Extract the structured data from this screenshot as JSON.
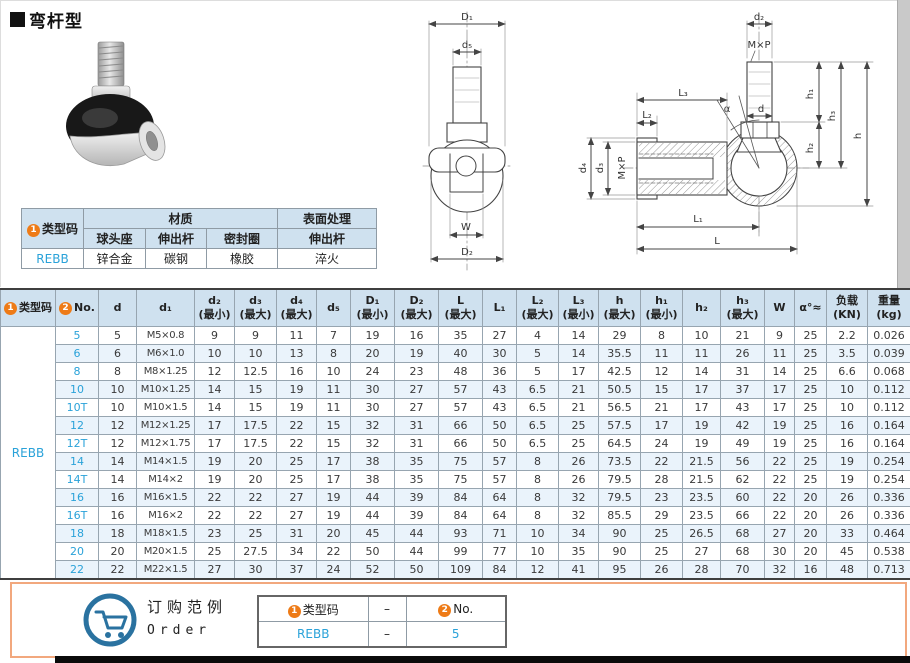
{
  "page": {
    "title": "弯杆型"
  },
  "material_table": {
    "circle1": "1",
    "type_code_header": "类型码",
    "material_header": "材质",
    "surface_header": "表面处理",
    "sub_headers": [
      "球头座",
      "伸出杆",
      "密封圈",
      "伸出杆"
    ],
    "row": {
      "type_code": "REBB",
      "values": [
        "锌合金",
        "碳钢",
        "橡胶",
        "淬火"
      ]
    }
  },
  "drawings": {
    "front": {
      "D1": "D₁",
      "d5": "d₅",
      "W": "W",
      "D2": "D₂"
    },
    "side": {
      "d2": "d₂",
      "mxp_top": "M×P",
      "L3": "L₃",
      "L2": "L₂",
      "alpha": "α",
      "d": "d",
      "h1": "h₁",
      "h2": "h₂",
      "h3": "h₃",
      "h": "h",
      "d4": "d₄",
      "d3": "d₃",
      "mxp_side": "M×P",
      "L1": "L₁",
      "L": "L"
    }
  },
  "main_table": {
    "type_code": "REBB",
    "headers": [
      {
        "circle": "1",
        "label": "类型码"
      },
      {
        "circle": "2",
        "label": "No."
      },
      {
        "label": "d"
      },
      {
        "label": "d₁"
      },
      {
        "label": "d₂",
        "qual": "(最小)"
      },
      {
        "label": "d₃",
        "qual": "(最大)"
      },
      {
        "label": "d₄",
        "qual": "(最大)"
      },
      {
        "label": "d₅"
      },
      {
        "label": "D₁",
        "qual": "(最小)"
      },
      {
        "label": "D₂",
        "qual": "(最大)"
      },
      {
        "label": "L",
        "qual": "(最大)"
      },
      {
        "label": "L₁"
      },
      {
        "label": "L₂",
        "qual": "(最大)"
      },
      {
        "label": "L₃",
        "qual": "(最小)"
      },
      {
        "label": "h",
        "qual": "(最大)"
      },
      {
        "label": "h₁",
        "qual": "(最小)"
      },
      {
        "label": "h₂"
      },
      {
        "label": "h₃",
        "qual": "(最大)"
      },
      {
        "label": "W"
      },
      {
        "label": "α°≈"
      },
      {
        "label": "负载",
        "qual": "(KN)"
      },
      {
        "label": "重量",
        "qual": "(kg)"
      }
    ],
    "rows": [
      {
        "no": "5",
        "cells": [
          "5",
          "M5×0.8",
          "9",
          "9",
          "11",
          "7",
          "19",
          "16",
          "35",
          "27",
          "4",
          "14",
          "29",
          "8",
          "10",
          "21",
          "9",
          "25",
          "2.2",
          "0.026"
        ]
      },
      {
        "no": "6",
        "cells": [
          "6",
          "M6×1.0",
          "10",
          "10",
          "13",
          "8",
          "20",
          "19",
          "40",
          "30",
          "5",
          "14",
          "35.5",
          "11",
          "11",
          "26",
          "11",
          "25",
          "3.5",
          "0.039"
        ]
      },
      {
        "no": "8",
        "cells": [
          "8",
          "M8×1.25",
          "12",
          "12.5",
          "16",
          "10",
          "24",
          "23",
          "48",
          "36",
          "5",
          "17",
          "42.5",
          "12",
          "14",
          "31",
          "14",
          "25",
          "6.6",
          "0.068"
        ]
      },
      {
        "no": "10",
        "cells": [
          "10",
          "M10×1.25",
          "14",
          "15",
          "19",
          "11",
          "30",
          "27",
          "57",
          "43",
          "6.5",
          "21",
          "50.5",
          "15",
          "17",
          "37",
          "17",
          "25",
          "10",
          "0.112"
        ]
      },
      {
        "no": "10T",
        "cells": [
          "10",
          "M10×1.5",
          "14",
          "15",
          "19",
          "11",
          "30",
          "27",
          "57",
          "43",
          "6.5",
          "21",
          "56.5",
          "21",
          "17",
          "43",
          "17",
          "25",
          "10",
          "0.112"
        ]
      },
      {
        "no": "12",
        "cells": [
          "12",
          "M12×1.25",
          "17",
          "17.5",
          "22",
          "15",
          "32",
          "31",
          "66",
          "50",
          "6.5",
          "25",
          "57.5",
          "17",
          "19",
          "42",
          "19",
          "25",
          "16",
          "0.164"
        ]
      },
      {
        "no": "12T",
        "cells": [
          "12",
          "M12×1.75",
          "17",
          "17.5",
          "22",
          "15",
          "32",
          "31",
          "66",
          "50",
          "6.5",
          "25",
          "64.5",
          "24",
          "19",
          "49",
          "19",
          "25",
          "16",
          "0.164"
        ]
      },
      {
        "no": "14",
        "cells": [
          "14",
          "M14×1.5",
          "19",
          "20",
          "25",
          "17",
          "38",
          "35",
          "75",
          "57",
          "8",
          "26",
          "73.5",
          "22",
          "21.5",
          "56",
          "22",
          "25",
          "19",
          "0.254"
        ]
      },
      {
        "no": "14T",
        "cells": [
          "14",
          "M14×2",
          "19",
          "20",
          "25",
          "17",
          "38",
          "35",
          "75",
          "57",
          "8",
          "26",
          "79.5",
          "28",
          "21.5",
          "62",
          "22",
          "25",
          "19",
          "0.254"
        ]
      },
      {
        "no": "16",
        "cells": [
          "16",
          "M16×1.5",
          "22",
          "22",
          "27",
          "19",
          "44",
          "39",
          "84",
          "64",
          "8",
          "32",
          "79.5",
          "23",
          "23.5",
          "60",
          "22",
          "20",
          "26",
          "0.336"
        ]
      },
      {
        "no": "16T",
        "cells": [
          "16",
          "M16×2",
          "22",
          "22",
          "27",
          "19",
          "44",
          "39",
          "84",
          "64",
          "8",
          "32",
          "85.5",
          "29",
          "23.5",
          "66",
          "22",
          "20",
          "26",
          "0.336"
        ]
      },
      {
        "no": "18",
        "cells": [
          "18",
          "M18×1.5",
          "23",
          "25",
          "31",
          "20",
          "45",
          "44",
          "93",
          "71",
          "10",
          "34",
          "90",
          "25",
          "26.5",
          "68",
          "27",
          "20",
          "33",
          "0.464"
        ]
      },
      {
        "no": "20",
        "cells": [
          "20",
          "M20×1.5",
          "25",
          "27.5",
          "34",
          "22",
          "50",
          "44",
          "99",
          "77",
          "10",
          "35",
          "90",
          "25",
          "27",
          "68",
          "30",
          "20",
          "45",
          "0.538"
        ]
      },
      {
        "no": "22",
        "cells": [
          "22",
          "M22×1.5",
          "27",
          "30",
          "37",
          "24",
          "52",
          "50",
          "109",
          "84",
          "12",
          "41",
          "95",
          "26",
          "28",
          "70",
          "32",
          "16",
          "48",
          "0.713"
        ]
      }
    ]
  },
  "order_example": {
    "circle1": "1",
    "circle2": "2",
    "title_cn": "订购范例",
    "title_en": "Order",
    "header_type": "类型码",
    "header_no": "No.",
    "dash": "–",
    "value_type": "REBB",
    "value_no": "5"
  }
}
